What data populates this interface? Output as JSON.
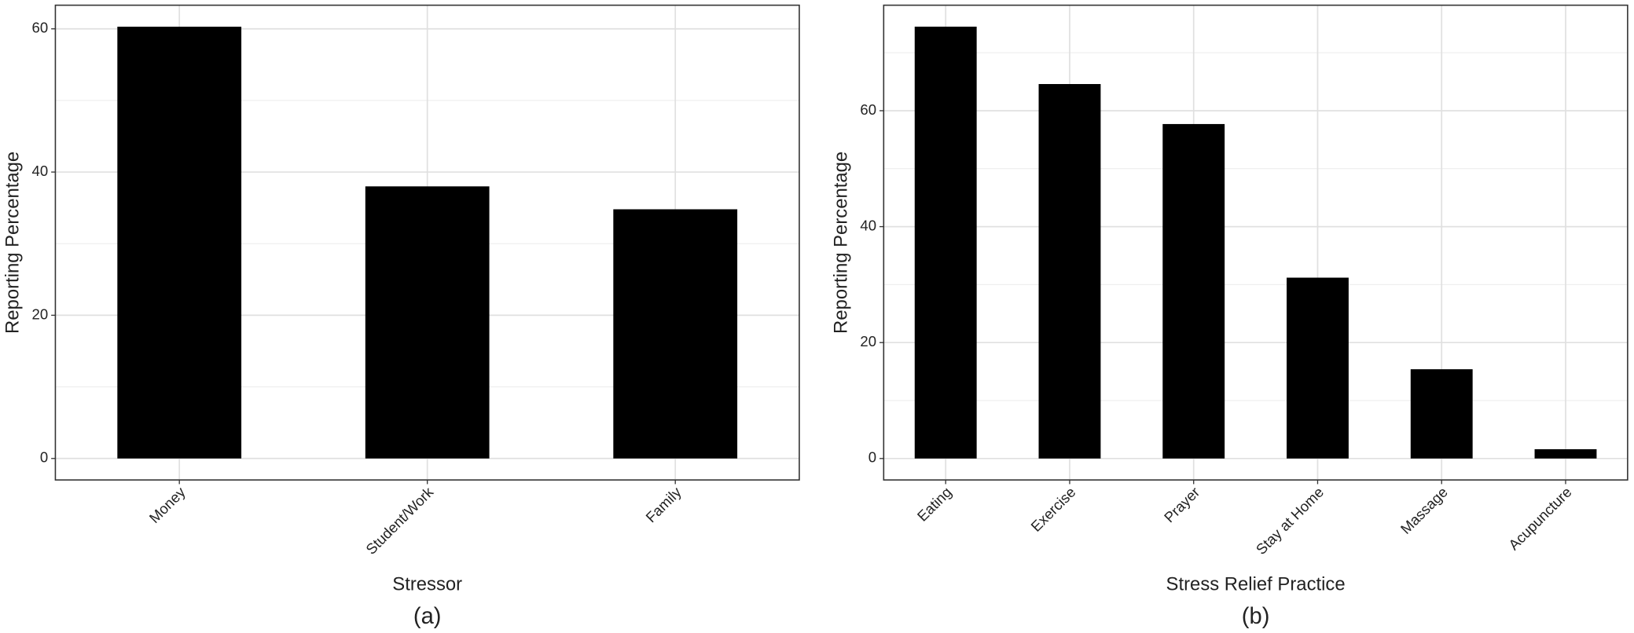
{
  "chart_data": [
    {
      "type": "bar",
      "caption": "(a)",
      "x_label": "Stressor",
      "y_label": "Reporting Percentage",
      "categories": [
        "Money",
        "Student/Work",
        "Family"
      ],
      "values": [
        60.3,
        38.0,
        34.8
      ],
      "color": "#000000",
      "ylim": [
        -3.0,
        63.3
      ],
      "yticks": [
        0,
        20,
        40,
        60
      ],
      "minor_yticks": [
        10,
        30,
        50
      ],
      "grid": true
    },
    {
      "type": "bar",
      "caption": "(b)",
      "x_label": "Stress Relief Practice",
      "y_label": "Reporting Percentage",
      "categories": [
        "Eating",
        "Exercise",
        "Prayer",
        "Stay at Home",
        "Massage",
        "Acupuncture"
      ],
      "values": [
        74.5,
        64.6,
        57.7,
        31.2,
        15.4,
        1.6
      ],
      "color": "#000000",
      "ylim": [
        -3.7,
        78.2
      ],
      "yticks": [
        0,
        20,
        40,
        60
      ],
      "minor_yticks": [
        10,
        30,
        50,
        70
      ],
      "grid": true
    }
  ]
}
